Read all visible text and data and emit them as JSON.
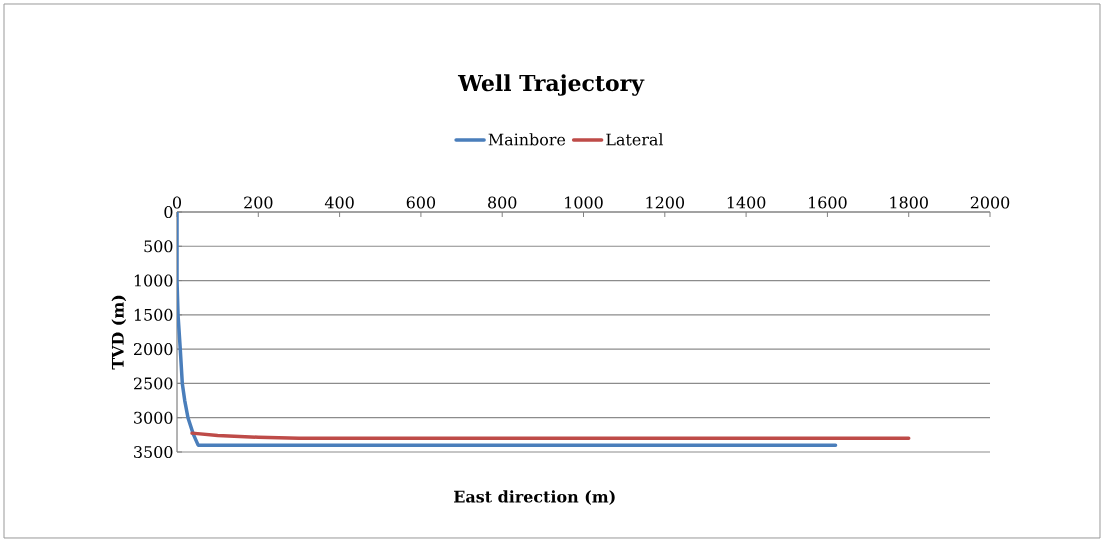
{
  "chart_data": {
    "type": "line",
    "title": "Well Trajectory",
    "xlabel": "East direction (m)",
    "ylabel": "TVD (m)",
    "xlim": [
      0,
      2000
    ],
    "xticks": [
      0,
      200,
      400,
      600,
      800,
      1000,
      1200,
      1400,
      1600,
      1800,
      2000
    ],
    "ylim": [
      3500,
      0
    ],
    "yticks": [
      0,
      500,
      1000,
      1500,
      2000,
      2500,
      3000,
      3500
    ],
    "grid": "y",
    "legend": "top",
    "marker": "none",
    "line_style": "solid",
    "series": [
      {
        "name": "Mainbore",
        "color": "#4a7ebb",
        "x": [
          0,
          0,
          2.5,
          8,
          13,
          19,
          27,
          40,
          52,
          1620
        ],
        "values": [
          0,
          1000,
          1500,
          2000,
          2500,
          2750,
          3000,
          3240,
          3400,
          3400
        ]
      },
      {
        "name": "Lateral",
        "color": "#be4b48",
        "x": [
          37,
          100,
          200,
          300,
          1800
        ],
        "values": [
          3225,
          3260,
          3285,
          3300,
          3300
        ]
      }
    ]
  }
}
